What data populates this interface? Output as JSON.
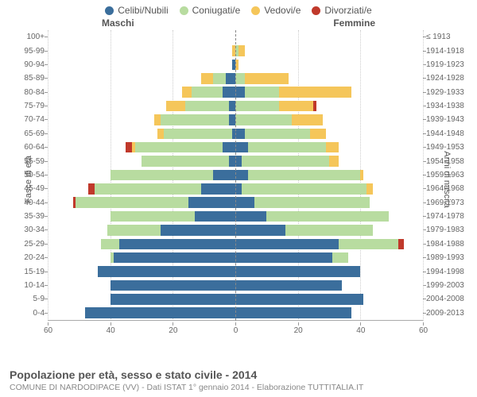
{
  "chart": {
    "type": "population-pyramid",
    "xmax": 60,
    "x_ticks": [
      0,
      20,
      40,
      60
    ],
    "grid_color": "#cccccc",
    "centerline_color": "#888888",
    "background": "#ffffff",
    "legend": [
      {
        "key": "single",
        "label": "Celibi/Nubili",
        "color": "#3b6e9c"
      },
      {
        "key": "married",
        "label": "Coniugati/e",
        "color": "#b8dca0"
      },
      {
        "key": "widowed",
        "label": "Vedovi/e",
        "color": "#f5c65a"
      },
      {
        "key": "divorced",
        "label": "Divorziati/e",
        "color": "#c0392b"
      }
    ],
    "side_labels": {
      "male": "Maschi",
      "female": "Femmine"
    },
    "y_axis_titles": {
      "left": "Fasce di età",
      "right": "Anni di nascita"
    },
    "title": "Popolazione per età, sesso e stato civile - 2014",
    "subtitle": "COMUNE DI NARDODIPACE (VV) - Dati ISTAT 1° gennaio 2014 - Elaborazione TUTTITALIA.IT",
    "rows": [
      {
        "age": "100+",
        "birth": "≤ 1913",
        "m": {
          "single": 0,
          "married": 0,
          "widowed": 0,
          "divorced": 0
        },
        "f": {
          "single": 0,
          "married": 0,
          "widowed": 0,
          "divorced": 0
        }
      },
      {
        "age": "95-99",
        "birth": "1914-1918",
        "m": {
          "single": 0,
          "married": 0,
          "widowed": 1,
          "divorced": 0
        },
        "f": {
          "single": 0,
          "married": 1,
          "widowed": 2,
          "divorced": 0
        }
      },
      {
        "age": "90-94",
        "birth": "1919-1923",
        "m": {
          "single": 1,
          "married": 0,
          "widowed": 0,
          "divorced": 0
        },
        "f": {
          "single": 0,
          "married": 0,
          "widowed": 1,
          "divorced": 0
        }
      },
      {
        "age": "85-89",
        "birth": "1924-1928",
        "m": {
          "single": 3,
          "married": 4,
          "widowed": 4,
          "divorced": 0
        },
        "f": {
          "single": 0,
          "married": 3,
          "widowed": 14,
          "divorced": 0
        }
      },
      {
        "age": "80-84",
        "birth": "1929-1933",
        "m": {
          "single": 4,
          "married": 10,
          "widowed": 3,
          "divorced": 0
        },
        "f": {
          "single": 3,
          "married": 11,
          "widowed": 23,
          "divorced": 0
        }
      },
      {
        "age": "75-79",
        "birth": "1934-1938",
        "m": {
          "single": 2,
          "married": 14,
          "widowed": 6,
          "divorced": 0
        },
        "f": {
          "single": 0,
          "married": 14,
          "widowed": 11,
          "divorced": 1
        }
      },
      {
        "age": "70-74",
        "birth": "1939-1943",
        "m": {
          "single": 2,
          "married": 22,
          "widowed": 2,
          "divorced": 0
        },
        "f": {
          "single": 0,
          "married": 18,
          "widowed": 10,
          "divorced": 0
        }
      },
      {
        "age": "65-69",
        "birth": "1944-1948",
        "m": {
          "single": 1,
          "married": 22,
          "widowed": 2,
          "divorced": 0
        },
        "f": {
          "single": 3,
          "married": 21,
          "widowed": 5,
          "divorced": 0
        }
      },
      {
        "age": "60-64",
        "birth": "1949-1953",
        "m": {
          "single": 4,
          "married": 28,
          "widowed": 1,
          "divorced": 2
        },
        "f": {
          "single": 4,
          "married": 25,
          "widowed": 4,
          "divorced": 0
        }
      },
      {
        "age": "55-59",
        "birth": "1954-1958",
        "m": {
          "single": 2,
          "married": 28,
          "widowed": 0,
          "divorced": 0
        },
        "f": {
          "single": 2,
          "married": 28,
          "widowed": 3,
          "divorced": 0
        }
      },
      {
        "age": "50-54",
        "birth": "1959-1963",
        "m": {
          "single": 7,
          "married": 33,
          "widowed": 0,
          "divorced": 0
        },
        "f": {
          "single": 4,
          "married": 36,
          "widowed": 1,
          "divorced": 0
        }
      },
      {
        "age": "45-49",
        "birth": "1964-1968",
        "m": {
          "single": 11,
          "married": 34,
          "widowed": 0,
          "divorced": 2
        },
        "f": {
          "single": 2,
          "married": 40,
          "widowed": 2,
          "divorced": 0
        }
      },
      {
        "age": "40-44",
        "birth": "1969-1973",
        "m": {
          "single": 15,
          "married": 36,
          "widowed": 0,
          "divorced": 1
        },
        "f": {
          "single": 6,
          "married": 37,
          "widowed": 0,
          "divorced": 0
        }
      },
      {
        "age": "35-39",
        "birth": "1974-1978",
        "m": {
          "single": 13,
          "married": 27,
          "widowed": 0,
          "divorced": 0
        },
        "f": {
          "single": 10,
          "married": 39,
          "widowed": 0,
          "divorced": 0
        }
      },
      {
        "age": "30-34",
        "birth": "1979-1983",
        "m": {
          "single": 24,
          "married": 17,
          "widowed": 0,
          "divorced": 0
        },
        "f": {
          "single": 16,
          "married": 28,
          "widowed": 0,
          "divorced": 0
        }
      },
      {
        "age": "25-29",
        "birth": "1984-1988",
        "m": {
          "single": 37,
          "married": 6,
          "widowed": 0,
          "divorced": 0
        },
        "f": {
          "single": 33,
          "married": 19,
          "widowed": 0,
          "divorced": 2
        }
      },
      {
        "age": "20-24",
        "birth": "1989-1993",
        "m": {
          "single": 39,
          "married": 1,
          "widowed": 0,
          "divorced": 0
        },
        "f": {
          "single": 31,
          "married": 5,
          "widowed": 0,
          "divorced": 0
        }
      },
      {
        "age": "15-19",
        "birth": "1994-1998",
        "m": {
          "single": 44,
          "married": 0,
          "widowed": 0,
          "divorced": 0
        },
        "f": {
          "single": 40,
          "married": 0,
          "widowed": 0,
          "divorced": 0
        }
      },
      {
        "age": "10-14",
        "birth": "1999-2003",
        "m": {
          "single": 40,
          "married": 0,
          "widowed": 0,
          "divorced": 0
        },
        "f": {
          "single": 34,
          "married": 0,
          "widowed": 0,
          "divorced": 0
        }
      },
      {
        "age": "5-9",
        "birth": "2004-2008",
        "m": {
          "single": 40,
          "married": 0,
          "widowed": 0,
          "divorced": 0
        },
        "f": {
          "single": 41,
          "married": 0,
          "widowed": 0,
          "divorced": 0
        }
      },
      {
        "age": "0-4",
        "birth": "2009-2013",
        "m": {
          "single": 48,
          "married": 0,
          "widowed": 0,
          "divorced": 0
        },
        "f": {
          "single": 37,
          "married": 0,
          "widowed": 0,
          "divorced": 0
        }
      }
    ]
  }
}
